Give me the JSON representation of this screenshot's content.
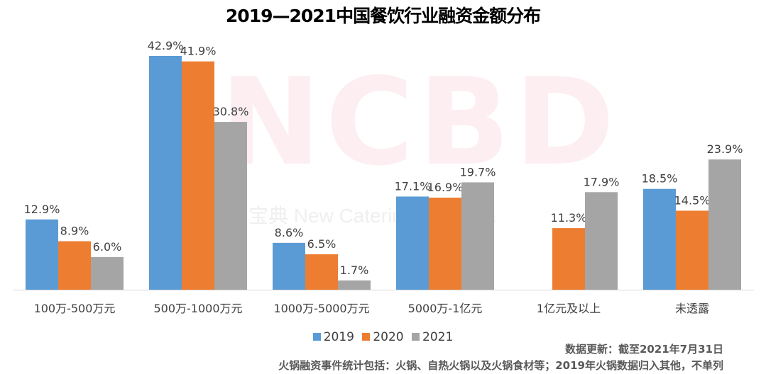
{
  "watermark": {
    "big": "NCBD",
    "small": "宝典  New Catering Big Data"
  },
  "chart_data": {
    "type": "bar",
    "title": "2019—2021中国餐饮行业融资金额分布",
    "xlabel": "",
    "ylabel": "",
    "ylim": [
      0,
      45
    ],
    "grid": false,
    "legend_position": "bottom",
    "categories": [
      "100万-500万元",
      "500万-1000万元",
      "1000万-5000万元",
      "5000万-1亿元",
      "1亿元及以上",
      "未透露"
    ],
    "series": [
      {
        "name": "2019",
        "color": "#5b9bd5",
        "values": [
          12.9,
          42.9,
          8.6,
          17.1,
          null,
          18.5
        ],
        "labels": [
          "12.9%",
          "42.9%",
          "8.6%",
          "17.1%",
          "",
          "18.5%"
        ]
      },
      {
        "name": "2020",
        "color": "#ed7d31",
        "values": [
          8.9,
          41.9,
          6.5,
          16.9,
          11.3,
          14.5
        ],
        "labels": [
          "8.9%",
          "41.9%",
          "6.5%",
          "16.9%",
          "11.3%",
          "14.5%"
        ]
      },
      {
        "name": "2021",
        "color": "#a5a5a5",
        "values": [
          6.0,
          30.8,
          1.7,
          19.7,
          17.9,
          23.9
        ],
        "labels": [
          "6.0%",
          "30.8%",
          "1.7%",
          "19.7%",
          "17.9%",
          "23.9%"
        ]
      }
    ]
  },
  "notes": {
    "update": "数据更新：截至2021年7月31日",
    "scope": "火锅融资事件统计包括：火锅、自热火锅以及火锅食材等；2019年火锅数据归入其他，不单列"
  }
}
